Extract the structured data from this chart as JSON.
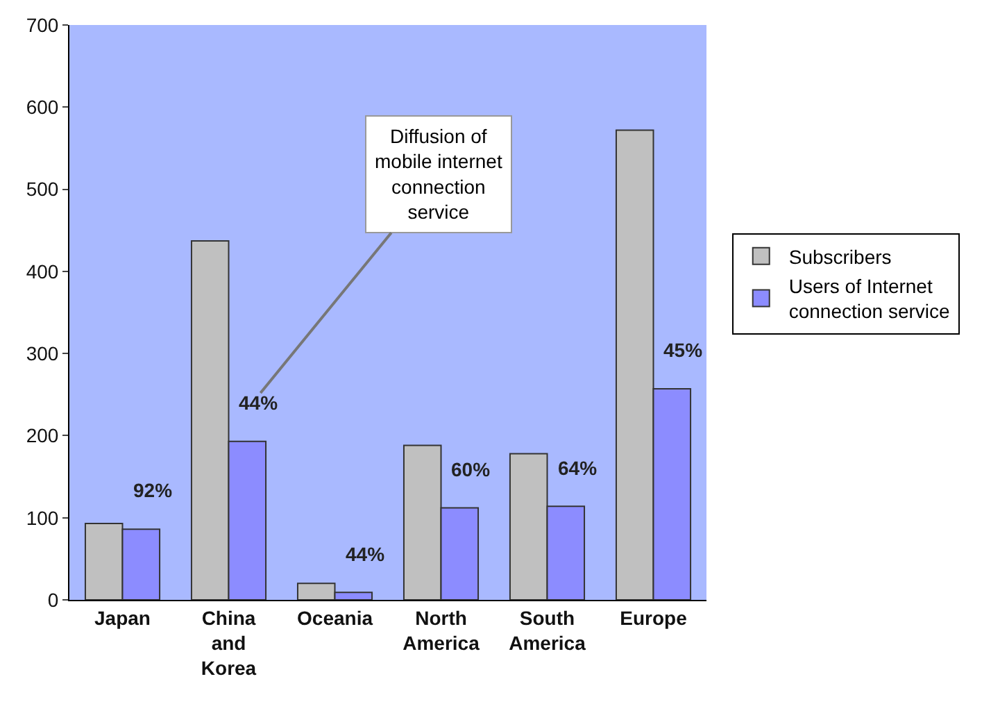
{
  "chart_data": {
    "type": "bar",
    "categories": [
      "Japan",
      "China\nand\nKorea",
      "Oceania",
      "North\nAmerica",
      "South\nAmerica",
      "Europe"
    ],
    "series": [
      {
        "name": "Subscribers",
        "color": "#c0c0c0",
        "values": [
          93,
          437,
          20,
          188,
          178,
          572
        ]
      },
      {
        "name": "Users of Internet\nconnection service",
        "color": "#8c8cff",
        "values": [
          86,
          193,
          9,
          112,
          114,
          257
        ]
      }
    ],
    "ylim": [
      0,
      700
    ],
    "yticks": [
      0,
      100,
      200,
      300,
      400,
      500,
      600,
      700
    ],
    "grid": false,
    "legend": "right",
    "annotations": [
      "Diffusion of\nmobile internet\nconnection\nservice",
      {
        "text": "92%",
        "x": "Japan",
        "y": 86
      },
      {
        "text": "44%",
        "x": "China\nand\nKorea",
        "y": 193
      },
      {
        "text": "44%",
        "x": "Oceania",
        "y": 9
      },
      {
        "text": "60%",
        "x": "North\nAmerica",
        "y": 112
      },
      {
        "text": "64%",
        "x": "South\nAmerica",
        "y": 114
      },
      {
        "text": "45%",
        "x": "Europe",
        "y": 257
      }
    ]
  }
}
